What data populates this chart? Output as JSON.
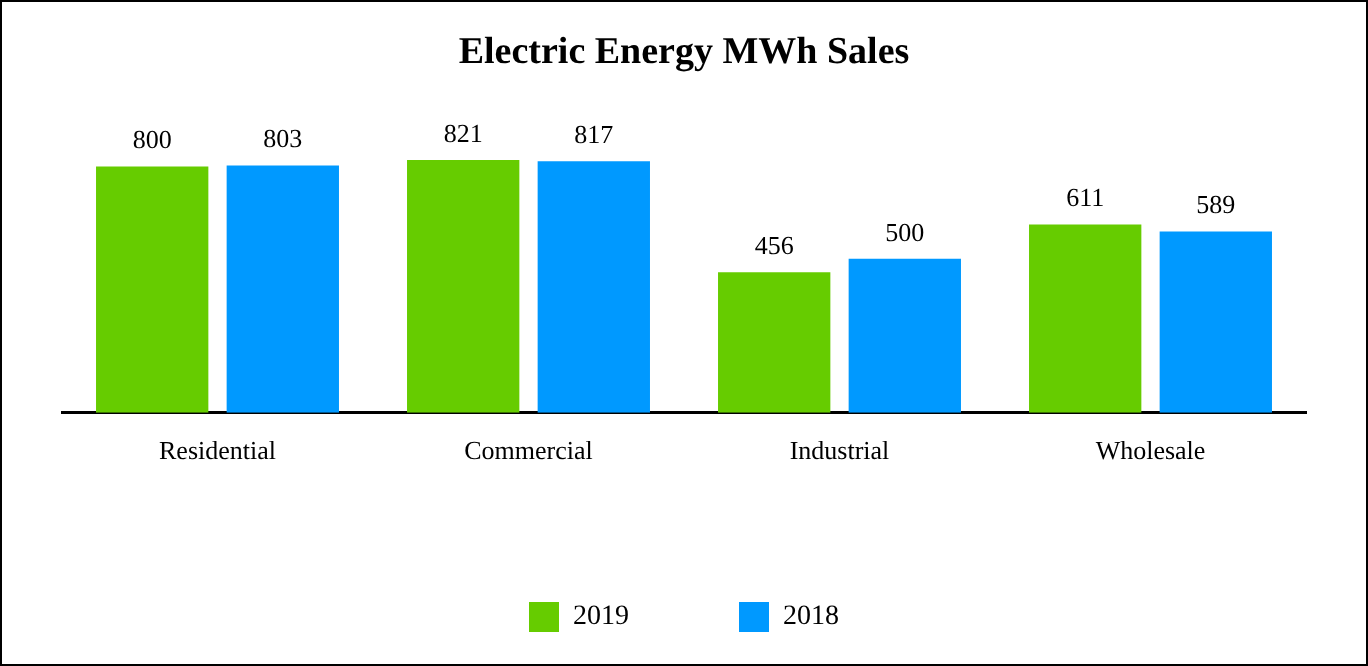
{
  "chart_data": {
    "type": "bar",
    "title": "Electric Energy MWh Sales",
    "categories": [
      "Residential",
      "Commercial",
      "Industrial",
      "Wholesale"
    ],
    "series": [
      {
        "name": "2019",
        "color": "#66cc00",
        "values": [
          800,
          821,
          456,
          611
        ]
      },
      {
        "name": "2018",
        "color": "#0099ff",
        "values": [
          803,
          817,
          500,
          589
        ]
      }
    ],
    "data_labels": true,
    "legend": "bottom",
    "grid": false,
    "tick_labels": "x"
  }
}
